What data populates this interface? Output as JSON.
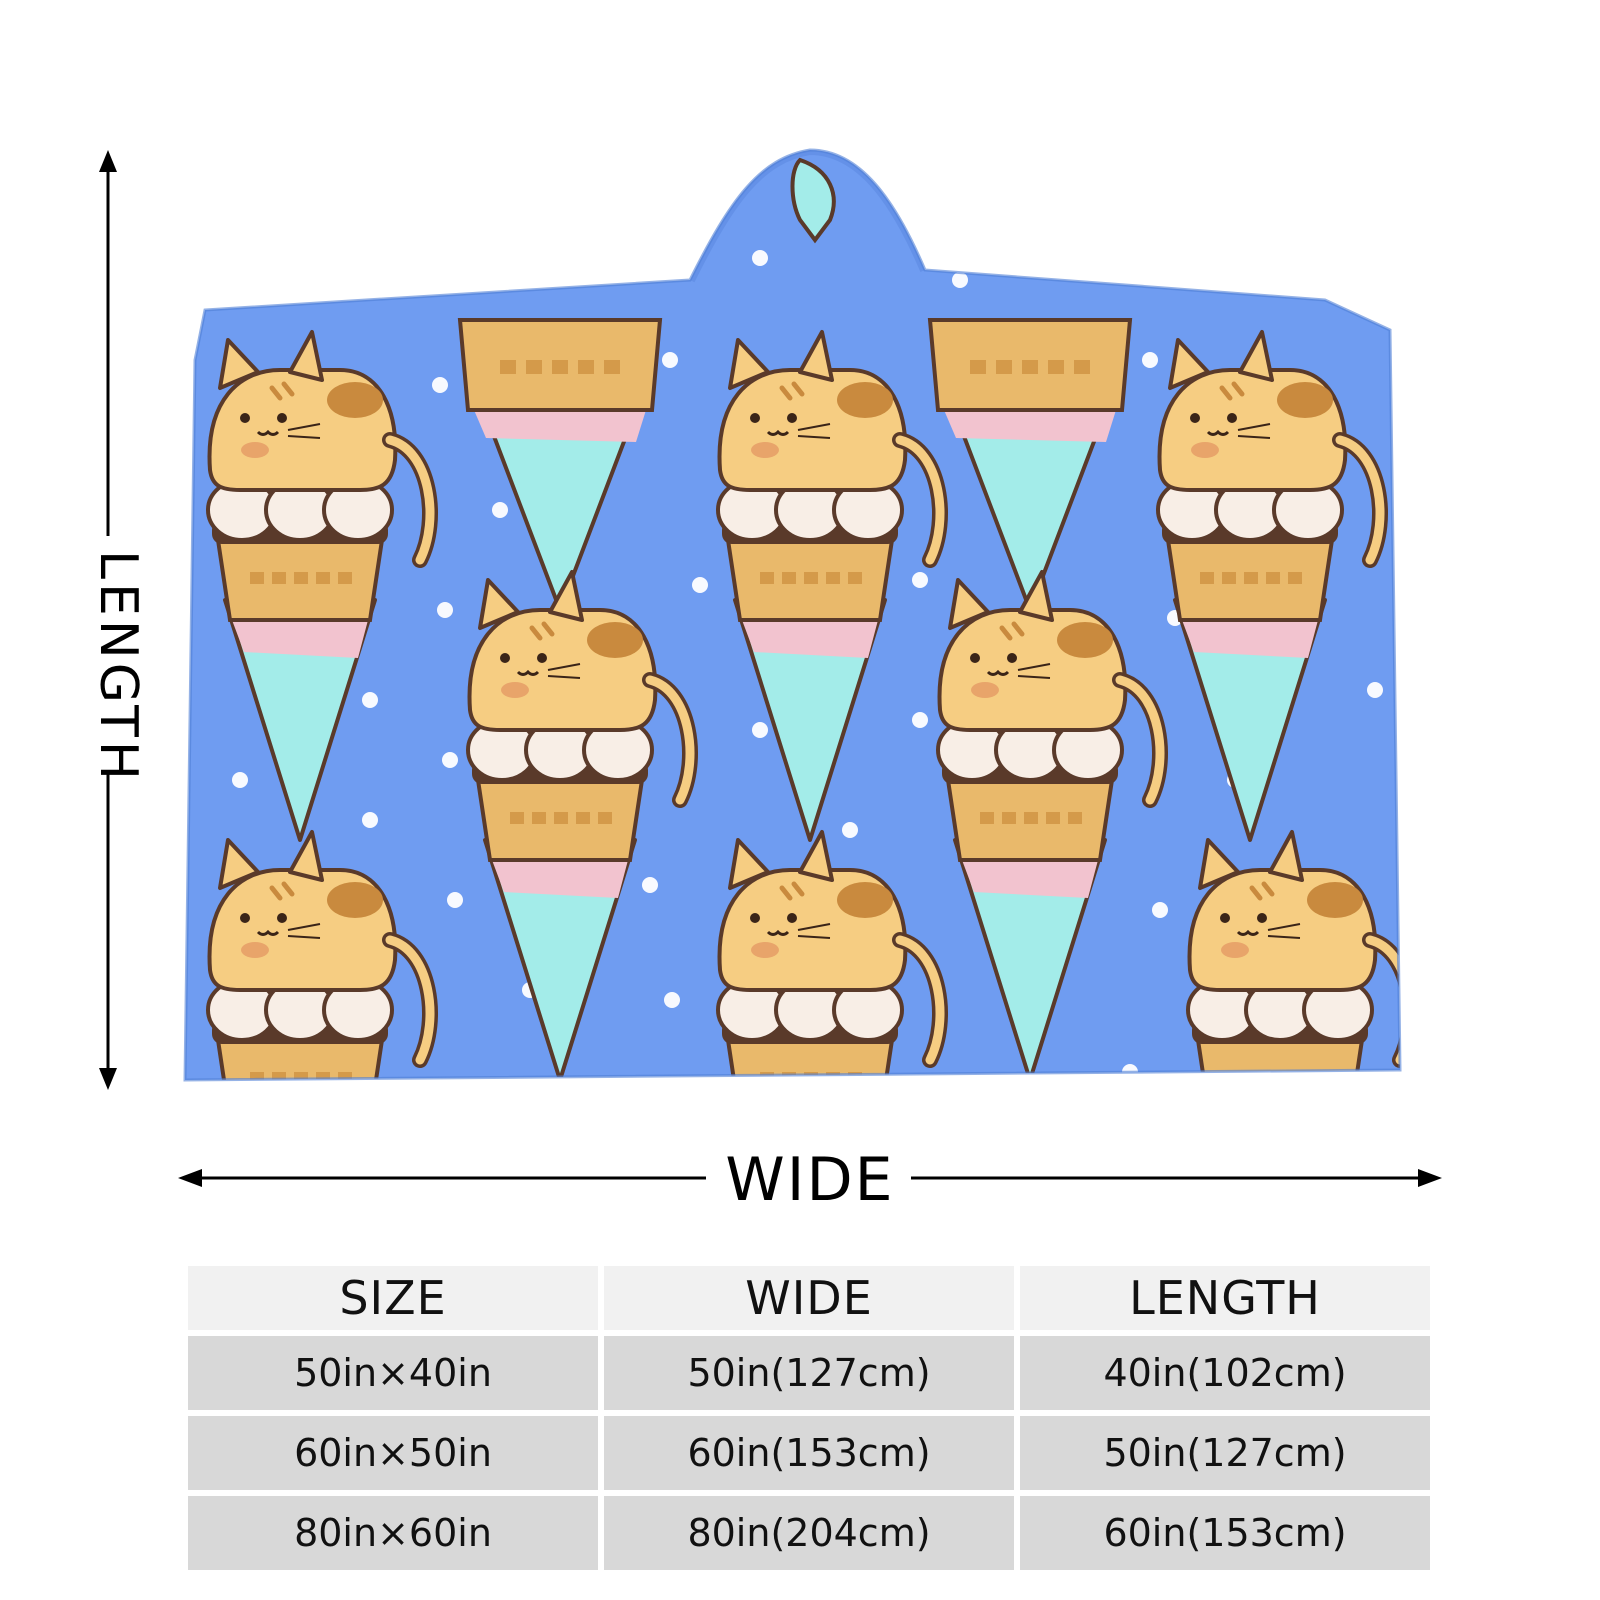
{
  "labels": {
    "length": "LENGTH",
    "wide": "WIDE"
  },
  "table": {
    "headers": [
      "SIZE",
      "WIDE",
      "LENGTH"
    ],
    "rows": [
      [
        "50in×40in",
        "50in(127cm)",
        "40in(102cm)"
      ],
      [
        "60in×50in",
        "60in(153cm)",
        "50in(127cm)"
      ],
      [
        "80in×60in",
        "80in(204cm)",
        "60in(153cm)"
      ]
    ]
  },
  "colors": {
    "blanket_blue": "#6f9cf1",
    "cone_teal": "#a3ece9",
    "cone_pink": "#f2c3cf",
    "waffle": "#e9b96b",
    "cat_fur": "#f6cd82",
    "outline": "#5a3a2a",
    "header_cell": "#f1f1f1",
    "body_cell": "#d8d8d8"
  },
  "icons": {
    "length_arrow": "double-arrow-vertical-icon",
    "wide_arrow": "double-arrow-horizontal-icon",
    "motif": "cat-ice-cream-cone-icon"
  }
}
